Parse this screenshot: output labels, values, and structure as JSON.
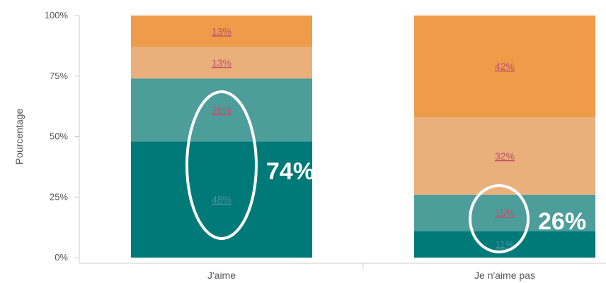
{
  "chart_data": {
    "type": "bar",
    "stacked": true,
    "percent_stacked": true,
    "ylabel": "Pourcentage",
    "ylim": [
      0,
      100
    ],
    "yticks": [
      "0%",
      "25%",
      "50%",
      "75%",
      "100%"
    ],
    "categories": [
      "J'aime",
      "Je n'aime pas"
    ],
    "series": [
      {
        "values": [
          48,
          11
        ],
        "color": "#007a78",
        "label_color": "#4a90a0"
      },
      {
        "values": [
          26,
          15
        ],
        "color": "#4d9d9b",
        "label_color": "#c0506a"
      },
      {
        "values": [
          13,
          32
        ],
        "color": "#e9b07c",
        "label_color": "#c0506a"
      },
      {
        "values": [
          13,
          42
        ],
        "color": "#ee9c49",
        "label_color": "#c0506a"
      }
    ],
    "data_labels": [
      [
        "48%",
        "11%"
      ],
      [
        "26%",
        "15%"
      ],
      [
        "13%",
        "32%"
      ],
      [
        "13%",
        "42%"
      ]
    ],
    "grid": false
  },
  "annotations": [
    {
      "text": "74%",
      "category": 0
    },
    {
      "text": "26%",
      "category": 1
    }
  ]
}
